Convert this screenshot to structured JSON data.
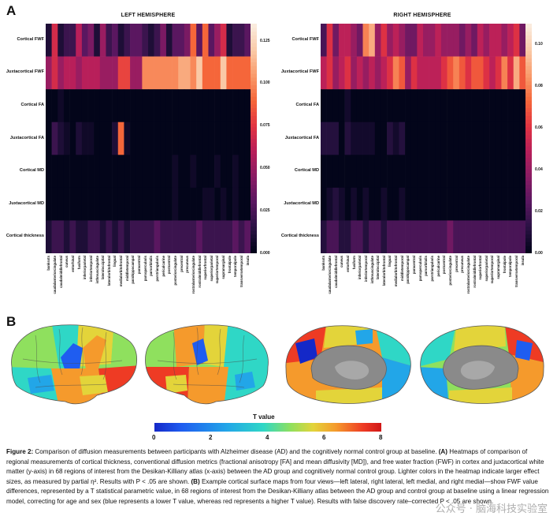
{
  "panel_a_label": "A",
  "panel_b_label": "B",
  "left_title": "LEFT HEMISPHERE",
  "right_title": "RIGHT HEMISPHERE",
  "row_labels": [
    "Cortical FWF",
    "Juxtacortical FWF",
    "Cortical FA",
    "Juxtacortical FA",
    "Cortical MD",
    "Juxtacortical MD",
    "Cortical thickness"
  ],
  "col_labels": [
    "bankssts",
    "caudalanteriorcingulate",
    "caudalmiddlefrontal",
    "cuneus",
    "entorhinal",
    "fusiform",
    "inferiorparietal",
    "inferiortemporal",
    "isthmuscingulate",
    "lateraloccipital",
    "lateralorbitofrontal",
    "lingual",
    "medialorbitofrontal",
    "middletemporal",
    "parahippocampal",
    "paracentral",
    "parsopercularis",
    "parsorbitalis",
    "parstriangularis",
    "pericalcarine",
    "postcentral",
    "posteriorcingulate",
    "precentral",
    "precuneus",
    "rostralanteriorcingulate",
    "rostralmiddlefrontal",
    "superiorfrontal",
    "superiorparietal",
    "superiortemporal",
    "supramarginal",
    "frontalpole",
    "temporalpole",
    "transversetemporal",
    "insula"
  ],
  "left_colorbar_ticks": [
    "0.125",
    "0.100",
    "0.075",
    "0.050",
    "0.025",
    "0.000"
  ],
  "right_colorbar_ticks": [
    "0.10",
    "0.08",
    "0.06",
    "0.04",
    "0.02",
    "0.00"
  ],
  "tvalue_title": "T value",
  "tvalue_ticks": [
    "0",
    "2",
    "4",
    "6",
    "8"
  ],
  "caption": {
    "fig_label": "Figure 2:",
    "text_1": "   Comparison of diffusion measurements between participants with Alzheimer disease (AD) and the cognitively normal control group at baseline. ",
    "a_ref": "(A)",
    "text_2": " Heatmaps of comparison of regional measurements of cortical thickness, conventional diffusion metrics (fractional anisotropy [FA] and mean diffusivity [MD]), and free water fraction (FWF) in cortex and juxtacortical white matter (y-axis) in 68 regions of interest from the Desikan-Killiany atlas (x-axis) between the AD group and cognitively normal control group. Lighter colors in the heatmap indicate larger effect sizes, as measured by partial η². Results with P < .05 are shown. ",
    "b_ref": "(B)",
    "text_3": " Example cortical surface maps from four views—left lateral, right lateral, left medial, and right medial—show FWF value differences, represented by a T statistical parametric value, in 68 regions of interest from the Desikan-Killiany atlas between the AD group and control group at baseline using a linear regression model, correcting for age and sex (blue represents a lower T value, whereas red represents a higher T value). Results with false discovery rate–corrected P < .05 are shown."
  },
  "watermark": "公众号 · 脑海科技实验室",
  "chart_data": [
    {
      "type": "heatmap",
      "title": "LEFT HEMISPHERE",
      "vmin": 0,
      "vmax": 0.135,
      "rows": [
        "Cortical FWF",
        "Juxtacortical FWF",
        "Cortical FA",
        "Juxtacortical FA",
        "Cortical MD",
        "Juxtacortical MD",
        "Cortical thickness"
      ],
      "columns": "col_labels",
      "values": [
        [
          0.01,
          0.07,
          0.01,
          0.02,
          0.02,
          0.06,
          0.03,
          0.04,
          0.01,
          0.05,
          0.02,
          0.03,
          0.01,
          0.02,
          0.03,
          0.03,
          0.02,
          0.01,
          0.02,
          0.04,
          0.01,
          0.03,
          0.03,
          0.04,
          0.09,
          0.03,
          0.09,
          0.03,
          0.05,
          0.07,
          0.01,
          0.02,
          0.02,
          0.03
        ],
        [
          0.05,
          0.07,
          0.05,
          0.06,
          0.06,
          0.05,
          0.06,
          0.06,
          0.06,
          0.05,
          0.05,
          0.05,
          0.08,
          0.08,
          0.05,
          0.05,
          0.1,
          0.1,
          0.1,
          0.1,
          0.1,
          0.1,
          0.11,
          0.11,
          0.1,
          0.12,
          0.09,
          0.09,
          0.09,
          0.12,
          0.09,
          0.09,
          0.09,
          0.09
        ],
        [
          0.0,
          0.0,
          0.005,
          0.0,
          0.0,
          0.0,
          0.0,
          0.0,
          0.0,
          0.0,
          0.0,
          0.0,
          0.0,
          0.0,
          0.0,
          0.0,
          0.0,
          0.0,
          0.0,
          0.0,
          0.0,
          0.0,
          0.0,
          0.0,
          0.0,
          0.0,
          0.0,
          0.0,
          0.0,
          0.0,
          0.0,
          0.0,
          0.0,
          0.0
        ],
        [
          0.0,
          0.02,
          0.01,
          0.005,
          0.0,
          0.01,
          0.005,
          0.005,
          0.0,
          0.0,
          0.0,
          0.01,
          0.09,
          0.005,
          0.0,
          0.0,
          0.0,
          0.0,
          0.0,
          0.0,
          0.0,
          0.0,
          0.0,
          0.0,
          0.0,
          0.0,
          0.0,
          0.0,
          0.0,
          0.0,
          0.0,
          0.0,
          0.0,
          0.0
        ],
        [
          0.0,
          0.0,
          0.0,
          0.0,
          0.0,
          0.0,
          0.0,
          0.0,
          0.0,
          0.0,
          0.0,
          0.0,
          0.0,
          0.0,
          0.0,
          0.0,
          0.0,
          0.0,
          0.0,
          0.0,
          0.0,
          0.005,
          0.0,
          0.0,
          0.005,
          0.0,
          0.0,
          0.0,
          0.005,
          0.0,
          0.0,
          0.005,
          0.0,
          0.0
        ],
        [
          0.0,
          0.0,
          0.0,
          0.0,
          0.0,
          0.0,
          0.0,
          0.0,
          0.0,
          0.0,
          0.0,
          0.0,
          0.0,
          0.0,
          0.0,
          0.0,
          0.0,
          0.0,
          0.0,
          0.0,
          0.0,
          0.005,
          0.0,
          0.0,
          0.0,
          0.0,
          0.005,
          0.005,
          0.0,
          0.005,
          0.0,
          0.005,
          0.0,
          0.0
        ],
        [
          0.01,
          0.02,
          0.02,
          0.01,
          0.02,
          0.01,
          0.01,
          0.02,
          0.02,
          0.01,
          0.02,
          0.01,
          0.02,
          0.01,
          0.02,
          0.02,
          0.02,
          0.02,
          0.03,
          0.02,
          0.02,
          0.02,
          0.02,
          0.02,
          0.02,
          0.03,
          0.02,
          0.02,
          0.02,
          0.02,
          0.02,
          0.03,
          0.02,
          0.03
        ]
      ]
    },
    {
      "type": "heatmap",
      "title": "RIGHT HEMISPHERE",
      "vmin": 0,
      "vmax": 0.11,
      "rows": [
        "Cortical FWF",
        "Juxtacortical FWF",
        "Cortical FA",
        "Juxtacortical FA",
        "Cortical MD",
        "Juxtacortical MD",
        "Cortical thickness"
      ],
      "columns": "col_labels",
      "values": [
        [
          0.02,
          0.06,
          0.03,
          0.05,
          0.05,
          0.04,
          0.03,
          0.08,
          0.09,
          0.04,
          0.06,
          0.04,
          0.05,
          0.04,
          0.03,
          0.03,
          0.05,
          0.04,
          0.04,
          0.05,
          0.04,
          0.04,
          0.04,
          0.03,
          0.04,
          0.03,
          0.05,
          0.04,
          0.05,
          0.05,
          0.04,
          0.05,
          0.06,
          0.03
        ],
        [
          0.05,
          0.06,
          0.04,
          0.05,
          0.06,
          0.04,
          0.05,
          0.04,
          0.05,
          0.04,
          0.05,
          0.06,
          0.08,
          0.07,
          0.04,
          0.06,
          0.05,
          0.05,
          0.05,
          0.05,
          0.06,
          0.07,
          0.08,
          0.07,
          0.06,
          0.07,
          0.07,
          0.06,
          0.05,
          0.06,
          0.08,
          0.06,
          0.09,
          0.07
        ],
        [
          0.0,
          0.0,
          0.0,
          0.0,
          0.005,
          0.0,
          0.0,
          0.0,
          0.0,
          0.0,
          0.0,
          0.0,
          0.0,
          0.0,
          0.0,
          0.0,
          0.0,
          0.0,
          0.0,
          0.0,
          0.0,
          0.0,
          0.0,
          0.0,
          0.0,
          0.0,
          0.0,
          0.0,
          0.0,
          0.0,
          0.0,
          0.0,
          0.0,
          0.0
        ],
        [
          0.01,
          0.01,
          0.01,
          0.0,
          0.01,
          0.005,
          0.005,
          0.005,
          0.005,
          0.0,
          0.0,
          0.01,
          0.005,
          0.01,
          0.0,
          0.0,
          0.0,
          0.0,
          0.0,
          0.0,
          0.0,
          0.0,
          0.0,
          0.0,
          0.0,
          0.0,
          0.0,
          0.0,
          0.0,
          0.0,
          0.0,
          0.0,
          0.0,
          0.0
        ],
        [
          0.0,
          0.0,
          0.0,
          0.0,
          0.0,
          0.0,
          0.0,
          0.0,
          0.0,
          0.0,
          0.0,
          0.0,
          0.0,
          0.0,
          0.0,
          0.0,
          0.0,
          0.0,
          0.0,
          0.0,
          0.0,
          0.0,
          0.0,
          0.0,
          0.0,
          0.0,
          0.0,
          0.0,
          0.0,
          0.0,
          0.0,
          0.0,
          0.0,
          0.0
        ],
        [
          0.0,
          0.005,
          0.01,
          0.005,
          0.0,
          0.005,
          0.0,
          0.005,
          0.0,
          0.0,
          0.005,
          0.0,
          0.0,
          0.005,
          0.0,
          0.0,
          0.0,
          0.0,
          0.0,
          0.0,
          0.0,
          0.0,
          0.0,
          0.0,
          0.0,
          0.0,
          0.0,
          0.0,
          0.0,
          0.0,
          0.0,
          0.0,
          0.0,
          0.0
        ],
        [
          0.01,
          0.02,
          0.02,
          0.01,
          0.01,
          0.02,
          0.02,
          0.01,
          0.02,
          0.02,
          0.01,
          0.02,
          0.02,
          0.02,
          0.02,
          0.02,
          0.02,
          0.02,
          0.02,
          0.02,
          0.02,
          0.03,
          0.02,
          0.02,
          0.02,
          0.02,
          0.02,
          0.02,
          0.02,
          0.02,
          0.02,
          0.02,
          0.02,
          0.02
        ]
      ]
    }
  ],
  "colors": {
    "heatmap_scale": [
      "#03051a",
      "#2b1245",
      "#5a1760",
      "#8a1c64",
      "#b81f5a",
      "#e13342",
      "#f5663a",
      "#f99a6a",
      "#fac9a6",
      "#faebdd"
    ],
    "tvalue_scale": [
      "#1428c8",
      "#1f5df0",
      "#22a6e8",
      "#2fd7c6",
      "#8fe05e",
      "#e3d43a",
      "#f59a2c",
      "#ee3b24",
      "#d01616"
    ],
    "gyrus_shadow": "#6b6b6b"
  }
}
